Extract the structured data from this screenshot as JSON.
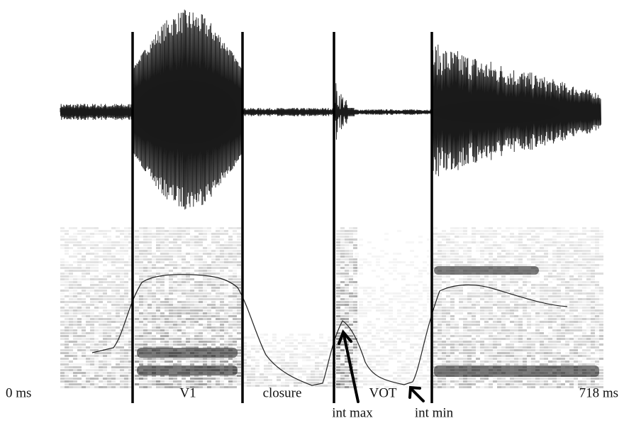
{
  "time_labels": {
    "start": "0 ms",
    "end": "718 ms"
  },
  "segments": [
    "V1",
    "closure",
    "VOT"
  ],
  "annotations": [
    "int max",
    "int min"
  ]
}
